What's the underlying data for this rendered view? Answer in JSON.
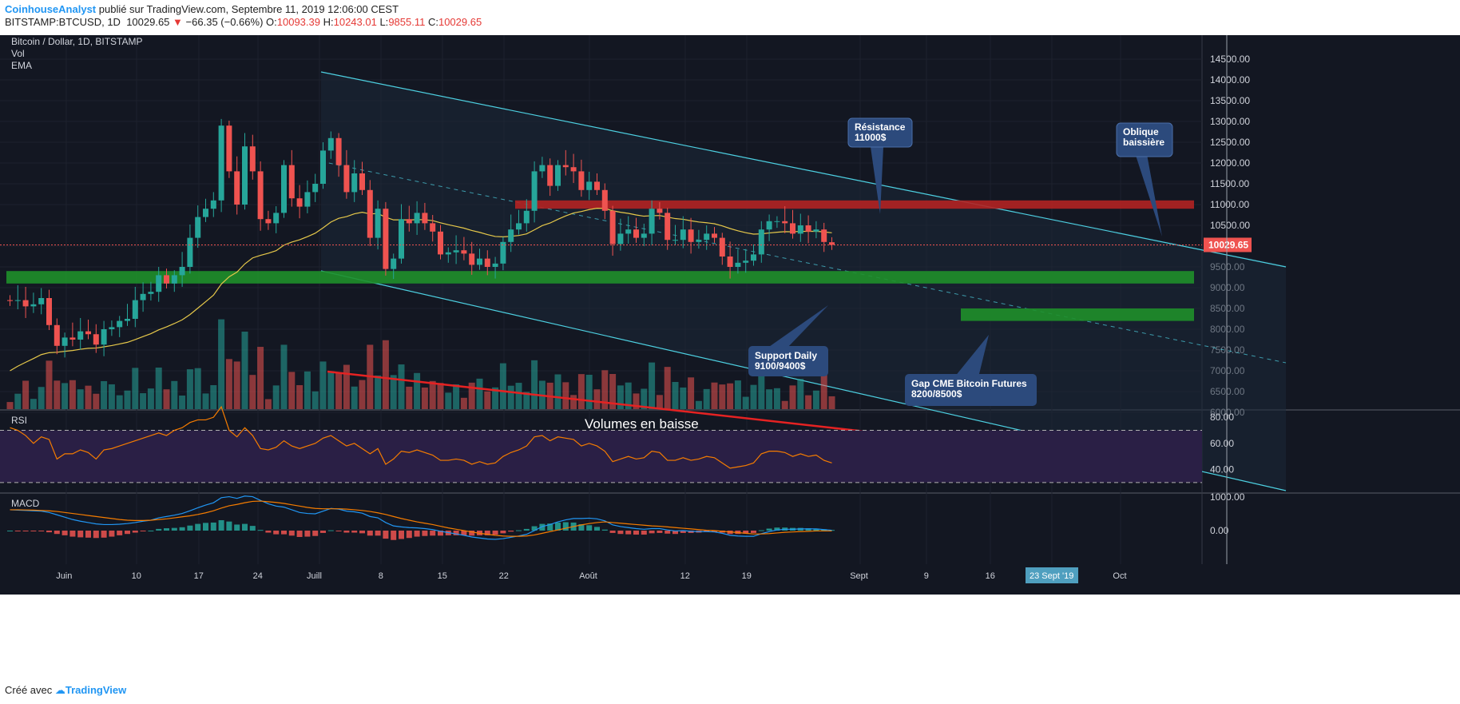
{
  "header": {
    "author": "CoinhouseAnalyst",
    "published": "publié sur TradingView.com, Septembre 11, 2019 12:06:00 CEST",
    "symbol": "BITSTAMP:BTCUSD, 1D",
    "last": "10029.65",
    "change": "−66.35 (−0.66%)",
    "o": "10093.39",
    "h": "10243.01",
    "l": "9855.11",
    "c": "10029.65"
  },
  "footer": {
    "made_with": "Créé avec",
    "brand": "TradingView"
  },
  "panes": {
    "main_title": "Bitcoin / Dollar, 1D, BITSTAMP",
    "vol": "Vol",
    "ema": "EMA",
    "rsi": "RSI",
    "macd": "MACD"
  },
  "annotations": {
    "resistance_1": "Résistance",
    "resistance_2": "11000$",
    "oblique_1": "Oblique",
    "oblique_2": "baissière",
    "support_1": "Support Daily",
    "support_2": "9100/9400$",
    "gap_1": "Gap CME Bitcoin Futures",
    "gap_2": "8200/8500$",
    "volumes": "Volumes en baisse",
    "cursor_date": "23 Sept '19",
    "price_tag": "10029.65"
  },
  "colors": {
    "background": "#131722",
    "up": "#26a69a",
    "down": "#ef5350",
    "ema": "#e6c84a",
    "rsi": "#f57c00",
    "macd": "#2196f3",
    "signal": "#f57c00",
    "support_zone": "#1f8f2a",
    "resistance_zone": "#b22222",
    "channel": "#4dd0e1",
    "volume_trend": "#e52222",
    "callout": "#2c4a7c"
  },
  "chart_data": [
    {
      "type": "candlestick",
      "title": "Bitcoin / Dollar, 1D, BITSTAMP",
      "x_dates": [
        "2019-05-29",
        "2019-05-30",
        "2019-05-31",
        "2019-06-01",
        "2019-06-02",
        "2019-06-03",
        "2019-06-04",
        "2019-06-05",
        "2019-06-06",
        "2019-06-07",
        "2019-06-08",
        "2019-06-09",
        "2019-06-10",
        "2019-06-11",
        "2019-06-12",
        "2019-06-13",
        "2019-06-14",
        "2019-06-15",
        "2019-06-16",
        "2019-06-17",
        "2019-06-18",
        "2019-06-19",
        "2019-06-20",
        "2019-06-21",
        "2019-06-22",
        "2019-06-23",
        "2019-06-24",
        "2019-06-25",
        "2019-06-26",
        "2019-06-27",
        "2019-06-28",
        "2019-06-29",
        "2019-06-30",
        "2019-07-01",
        "2019-07-02",
        "2019-07-03",
        "2019-07-04",
        "2019-07-05",
        "2019-07-06",
        "2019-07-07",
        "2019-07-08",
        "2019-07-09",
        "2019-07-10",
        "2019-07-11",
        "2019-07-12",
        "2019-07-13",
        "2019-07-14",
        "2019-07-15",
        "2019-07-16",
        "2019-07-17",
        "2019-07-18",
        "2019-07-19",
        "2019-07-20",
        "2019-07-21",
        "2019-07-22",
        "2019-07-23",
        "2019-07-24",
        "2019-07-25",
        "2019-07-26",
        "2019-07-27",
        "2019-07-28",
        "2019-07-29",
        "2019-07-30",
        "2019-07-31",
        "2019-08-01",
        "2019-08-02",
        "2019-08-03",
        "2019-08-04",
        "2019-08-05",
        "2019-08-06",
        "2019-08-07",
        "2019-08-08",
        "2019-08-09",
        "2019-08-10",
        "2019-08-11",
        "2019-08-12",
        "2019-08-13",
        "2019-08-14",
        "2019-08-15",
        "2019-08-16",
        "2019-08-17",
        "2019-08-18",
        "2019-08-19",
        "2019-08-20",
        "2019-08-21",
        "2019-08-22",
        "2019-08-23",
        "2019-08-24",
        "2019-08-25",
        "2019-08-26",
        "2019-08-27",
        "2019-08-28",
        "2019-08-29",
        "2019-08-30",
        "2019-08-31",
        "2019-09-01",
        "2019-09-02",
        "2019-09-03",
        "2019-09-04",
        "2019-09-05",
        "2019-09-06",
        "2019-09-07",
        "2019-09-08",
        "2019-09-09",
        "2019-09-10",
        "2019-09-11"
      ],
      "close": [
        8680,
        8700,
        8550,
        8600,
        8750,
        8100,
        7600,
        7800,
        7750,
        7950,
        7880,
        7630,
        8000,
        8050,
        8200,
        8250,
        8700,
        8850,
        8900,
        9300,
        9100,
        9300,
        9500,
        10200,
        10700,
        10900,
        11100,
        12900,
        11800,
        11000,
        12400,
        11800,
        10650,
        10550,
        10800,
        11950,
        11150,
        10950,
        11300,
        11500,
        12300,
        12600,
        11950,
        11300,
        11750,
        11350,
        10200,
        10900,
        9450,
        9700,
        10650,
        10550,
        10800,
        10550,
        10350,
        9800,
        9850,
        9900,
        9820,
        9550,
        9700,
        9500,
        9580,
        10100,
        10400,
        10550,
        10850,
        11800,
        11950,
        11450,
        11950,
        11900,
        11800,
        11350,
        11550,
        11350,
        10850,
        10050,
        10300,
        10400,
        10200,
        10300,
        10900,
        10800,
        10150,
        10150,
        10400,
        10100,
        10150,
        10300,
        10200,
        9750,
        9500,
        9600,
        9650,
        9800,
        10400,
        10600,
        10600,
        10550,
        10300,
        10500,
        10350,
        10400,
        10100,
        10029.65
      ],
      "open": [
        8700,
        8680,
        8700,
        8550,
        8600,
        8750,
        8100,
        7600,
        7800,
        7750,
        7950,
        7880,
        7630,
        8000,
        8050,
        8200,
        8250,
        8700,
        8850,
        8900,
        9300,
        9100,
        9300,
        9500,
        10200,
        10700,
        10900,
        11100,
        12900,
        11800,
        11000,
        12400,
        11800,
        10650,
        10550,
        10800,
        11950,
        11150,
        10950,
        11300,
        11500,
        12300,
        12600,
        11950,
        11300,
        11750,
        11350,
        10200,
        10900,
        9450,
        9700,
        10650,
        10550,
        10800,
        10550,
        10350,
        9800,
        9850,
        9900,
        9820,
        9550,
        9700,
        9500,
        9580,
        10100,
        10400,
        10550,
        10850,
        11800,
        11950,
        11450,
        11950,
        11900,
        11800,
        11350,
        11550,
        11350,
        10850,
        10050,
        10300,
        10400,
        10200,
        10300,
        10900,
        10800,
        10150,
        10150,
        10400,
        10100,
        10150,
        10300,
        10200,
        9750,
        9500,
        9600,
        9650,
        9800,
        10400,
        10600,
        10600,
        10550,
        10300,
        10500,
        10350,
        10400,
        10093.39
      ],
      "y_axis_ticks": [
        "14500.00",
        "14000.00",
        "13500.00",
        "13000.00",
        "12500.00",
        "12000.00",
        "11500.00",
        "11000.00",
        "10500.00",
        "10000.00",
        "9500.00",
        "9000.00",
        "8500.00",
        "8000.00",
        "7500.00",
        "7000.00",
        "6500.00",
        "6000.00"
      ],
      "x_axis_ticks": [
        "Juin",
        "10",
        "17",
        "24",
        "Juill",
        "8",
        "15",
        "22",
        "Août",
        "12",
        "19",
        "Sept",
        "9",
        "16",
        "23 Sept '19",
        "Oct"
      ],
      "zones": [
        {
          "name": "Support Daily",
          "from": 9100,
          "to": 9400
        },
        {
          "name": "Gap CME Bitcoin Futures",
          "from": 8200,
          "to": 8500
        },
        {
          "name": "Résistance",
          "from": 10900,
          "to": 11100
        }
      ]
    },
    {
      "type": "line",
      "title": "RSI",
      "y_axis_ticks": [
        "80.00",
        "60.00",
        "40.00"
      ],
      "bands": [
        30,
        70
      ],
      "values": [
        72,
        70,
        66,
        60,
        65,
        63,
        48,
        52,
        52,
        55,
        53,
        48,
        55,
        56,
        58,
        60,
        62,
        64,
        66,
        68,
        66,
        70,
        72,
        76,
        78,
        78,
        80,
        88,
        70,
        65,
        72,
        66,
        56,
        55,
        57,
        62,
        58,
        56,
        58,
        60,
        64,
        66,
        62,
        58,
        60,
        56,
        52,
        56,
        44,
        48,
        54,
        53,
        55,
        53,
        51,
        47,
        47,
        48,
        47,
        44,
        46,
        44,
        45,
        50,
        53,
        55,
        58,
        65,
        66,
        62,
        65,
        64,
        63,
        58,
        60,
        58,
        54,
        46,
        48,
        50,
        48,
        49,
        54,
        53,
        47,
        47,
        49,
        47,
        48,
        50,
        49,
        45,
        41,
        42,
        43,
        45,
        52,
        54,
        54,
        53,
        50,
        52,
        50,
        51,
        47,
        45
      ]
    },
    {
      "type": "line",
      "title": "MACD",
      "y_axis_ticks": [
        "1000.00",
        "0.00"
      ],
      "series": [
        {
          "values": [
            620,
            610,
            600,
            590,
            580,
            540,
            470,
            400,
            330,
            280,
            240,
            200,
            180,
            180,
            190,
            210,
            240,
            280,
            310,
            380,
            420,
            460,
            510,
            590,
            680,
            760,
            830,
            980,
            1010,
            960,
            1030,
            1010,
            900,
            800,
            730,
            700,
            620,
            540,
            510,
            500,
            580,
            660,
            640,
            580,
            560,
            520,
            420,
            380,
            240,
            140,
            110,
            90,
            80,
            60,
            30,
            -20,
            -60,
            -100,
            -140,
            -190,
            -220,
            -250,
            -260,
            -240,
            -200,
            -160,
            -110,
            0,
            120,
            180,
            260,
            320,
            360,
            360,
            370,
            350,
            290,
            170,
            120,
            90,
            60,
            40,
            60,
            60,
            20,
            -10,
            0,
            -20,
            -30,
            -30,
            -40,
            -80,
            -140,
            -160,
            -170,
            -170,
            -90,
            -30,
            20,
            40,
            40,
            50,
            50,
            50,
            30,
            10
          ]
        },
        {
          "values": [
            620,
            620,
            615,
            610,
            600,
            590,
            570,
            540,
            510,
            480,
            450,
            420,
            390,
            360,
            330,
            310,
            300,
            300,
            310,
            330,
            350,
            380,
            410,
            440,
            480,
            530,
            590,
            670,
            740,
            780,
            830,
            870,
            880,
            860,
            840,
            810,
            770,
            730,
            690,
            660,
            650,
            650,
            650,
            640,
            620,
            600,
            570,
            530,
            480,
            420,
            360,
            310,
            260,
            220,
            180,
            130,
            80,
            40,
            0,
            -40,
            -80,
            -110,
            -140,
            -160,
            -170,
            -170,
            -160,
            -130,
            -80,
            -30,
            20,
            70,
            120,
            170,
            210,
            240,
            260,
            240,
            220,
            200,
            180,
            160,
            140,
            130,
            110,
            90,
            70,
            50,
            30,
            10,
            0,
            -20,
            -40,
            -60,
            -80,
            -100,
            -100,
            -90,
            -70,
            -50,
            -40,
            -30,
            -20,
            -10,
            -10,
            -10
          ]
        }
      ],
      "histogram": [
        0,
        -10,
        -15,
        -20,
        -20,
        -50,
        -100,
        -140,
        -180,
        -200,
        -210,
        -220,
        -210,
        -180,
        -140,
        -100,
        -60,
        -20,
        0,
        50,
        70,
        80,
        100,
        150,
        200,
        230,
        240,
        310,
        270,
        180,
        200,
        140,
        20,
        -60,
        -110,
        -110,
        -150,
        -190,
        -180,
        -160,
        -70,
        10,
        -10,
        -60,
        -60,
        -80,
        -150,
        -150,
        -240,
        -280,
        -250,
        -220,
        -180,
        -160,
        -150,
        -150,
        -140,
        -140,
        -140,
        -150,
        -140,
        -140,
        -120,
        -80,
        -30,
        10,
        50,
        130,
        200,
        210,
        240,
        250,
        240,
        190,
        160,
        110,
        30,
        -70,
        -100,
        -110,
        -120,
        -120,
        -80,
        -70,
        -90,
        -100,
        -70,
        -70,
        -60,
        -40,
        -40,
        -60,
        -100,
        -100,
        -90,
        -70,
        10,
        60,
        90,
        90,
        80,
        80,
        70,
        60,
        40,
        20
      ]
    }
  ]
}
